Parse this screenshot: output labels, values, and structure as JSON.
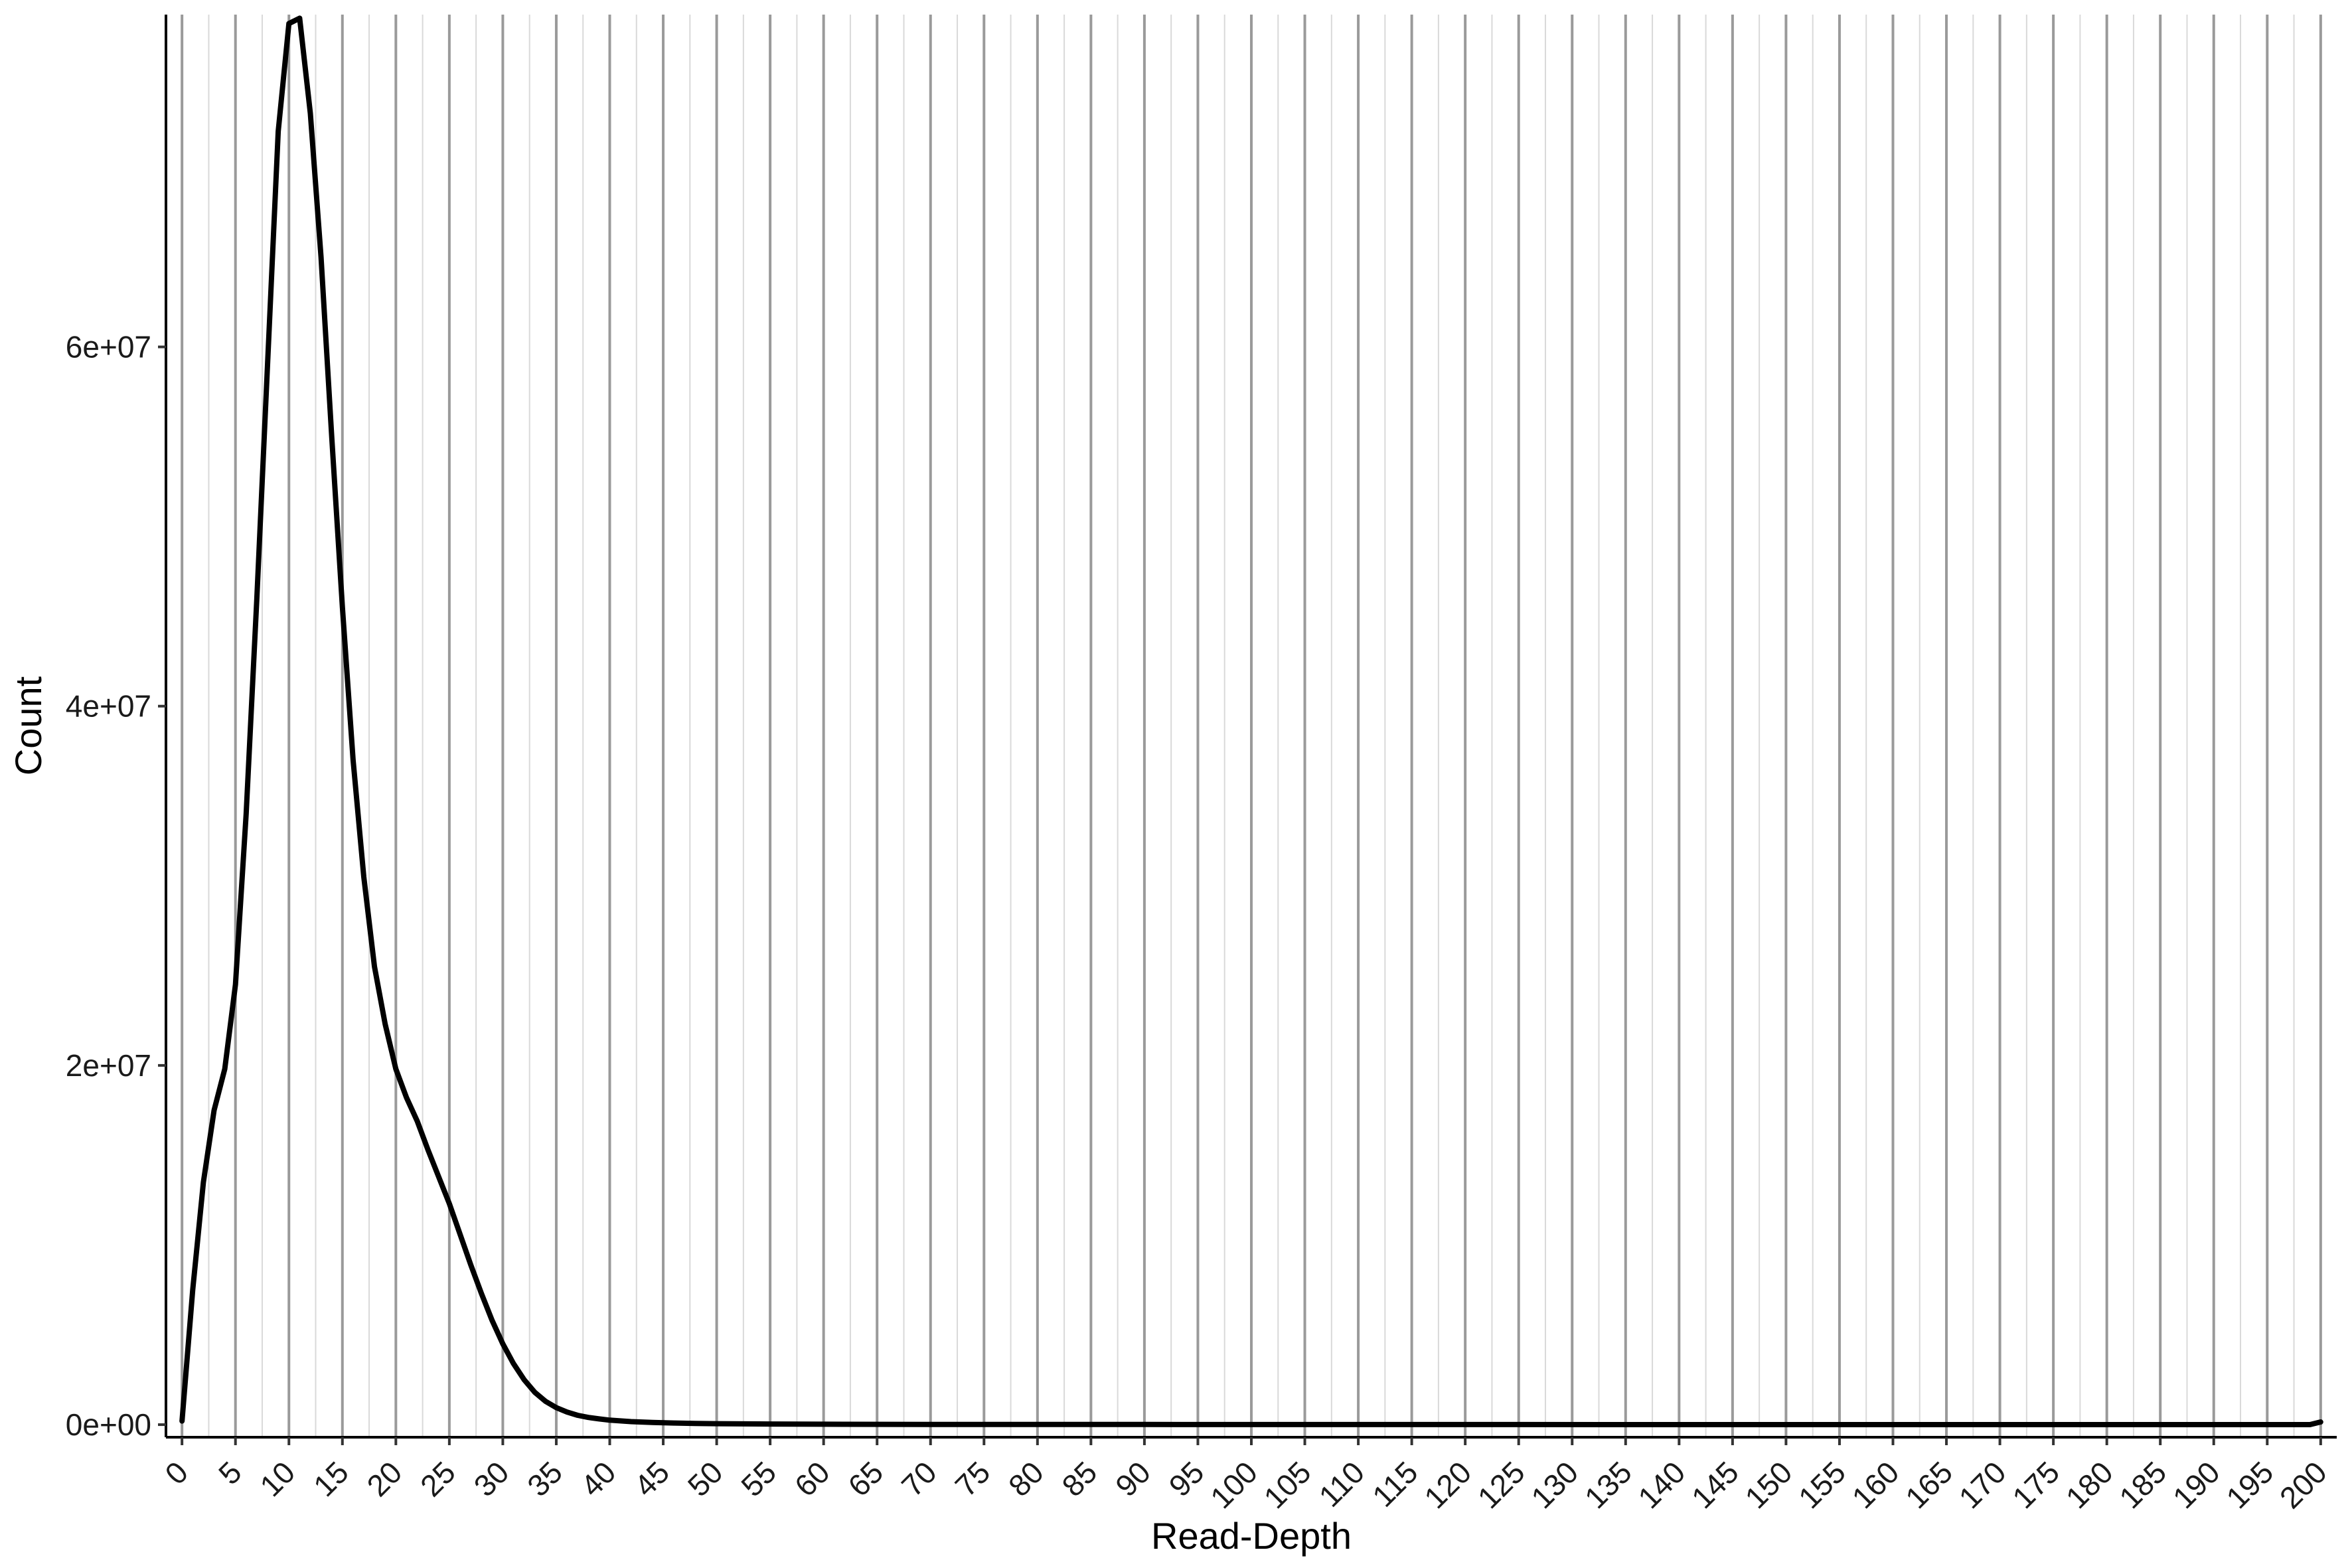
{
  "chart_data": {
    "type": "line",
    "title": "",
    "xlabel": "Read-Depth",
    "ylabel": "Count",
    "xlim": [
      -1.5,
      201.5
    ],
    "ylim": [
      -700000,
      78500000
    ],
    "x_ticks": [
      0,
      5,
      10,
      15,
      20,
      25,
      30,
      35,
      40,
      45,
      50,
      55,
      60,
      65,
      70,
      75,
      80,
      85,
      90,
      95,
      100,
      105,
      110,
      115,
      120,
      125,
      130,
      135,
      140,
      145,
      150,
      155,
      160,
      165,
      170,
      175,
      180,
      185,
      190,
      195,
      200
    ],
    "x_tick_labels": [
      "0",
      "5",
      "10",
      "15",
      "20",
      "25",
      "30",
      "35",
      "40",
      "45",
      "50",
      "55",
      "60",
      "65",
      "70",
      "75",
      "80",
      "85",
      "90",
      "95",
      "100",
      "105",
      "110",
      "115",
      "120",
      "125",
      "130",
      "135",
      "140",
      "145",
      "150",
      "155",
      "160",
      "165",
      "170",
      "175",
      "180",
      "185",
      "190",
      "195",
      "200"
    ],
    "y_ticks": [
      0,
      20000000,
      40000000,
      60000000
    ],
    "y_tick_labels": [
      "0e+00",
      "2e+07",
      "4e+07",
      "6e+07"
    ],
    "grid": {
      "major_vertical": true,
      "minor_vertical": true,
      "horizontal": false
    },
    "line_color": "#000000",
    "major_grid_color": "#9a9a9a",
    "minor_grid_color": "#d9d9d9",
    "series": [
      {
        "x": [
          0,
          1,
          2,
          3,
          4,
          5,
          6,
          7,
          8,
          9,
          10,
          11,
          12,
          13,
          14,
          15,
          16,
          17,
          18,
          19,
          20,
          21,
          22,
          23,
          24,
          25,
          26,
          27,
          28,
          29,
          30,
          31,
          32,
          33,
          34,
          35,
          36,
          37,
          38,
          39,
          40,
          42,
          44,
          46,
          48,
          50,
          55,
          60,
          70,
          80,
          90,
          100,
          120,
          140,
          160,
          180,
          199,
          200
        ],
        "y": [
          200000,
          7500000,
          13500000,
          17500000,
          19800000,
          24500000,
          34000000,
          46000000,
          59000000,
          72000000,
          78000000,
          78300000,
          73000000,
          65000000,
          55000000,
          45500000,
          37000000,
          30500000,
          25500000,
          22300000,
          19800000,
          18200000,
          16900000,
          15300000,
          13800000,
          12300000,
          10600000,
          8900000,
          7300000,
          5800000,
          4500000,
          3400000,
          2500000,
          1800000,
          1300000,
          950000,
          700000,
          520000,
          400000,
          320000,
          250000,
          170000,
          120000,
          90000,
          70000,
          55000,
          35000,
          25000,
          15000,
          10000,
          8000,
          6000,
          5000,
          4000,
          3000,
          2500,
          2000,
          150000
        ]
      }
    ]
  }
}
